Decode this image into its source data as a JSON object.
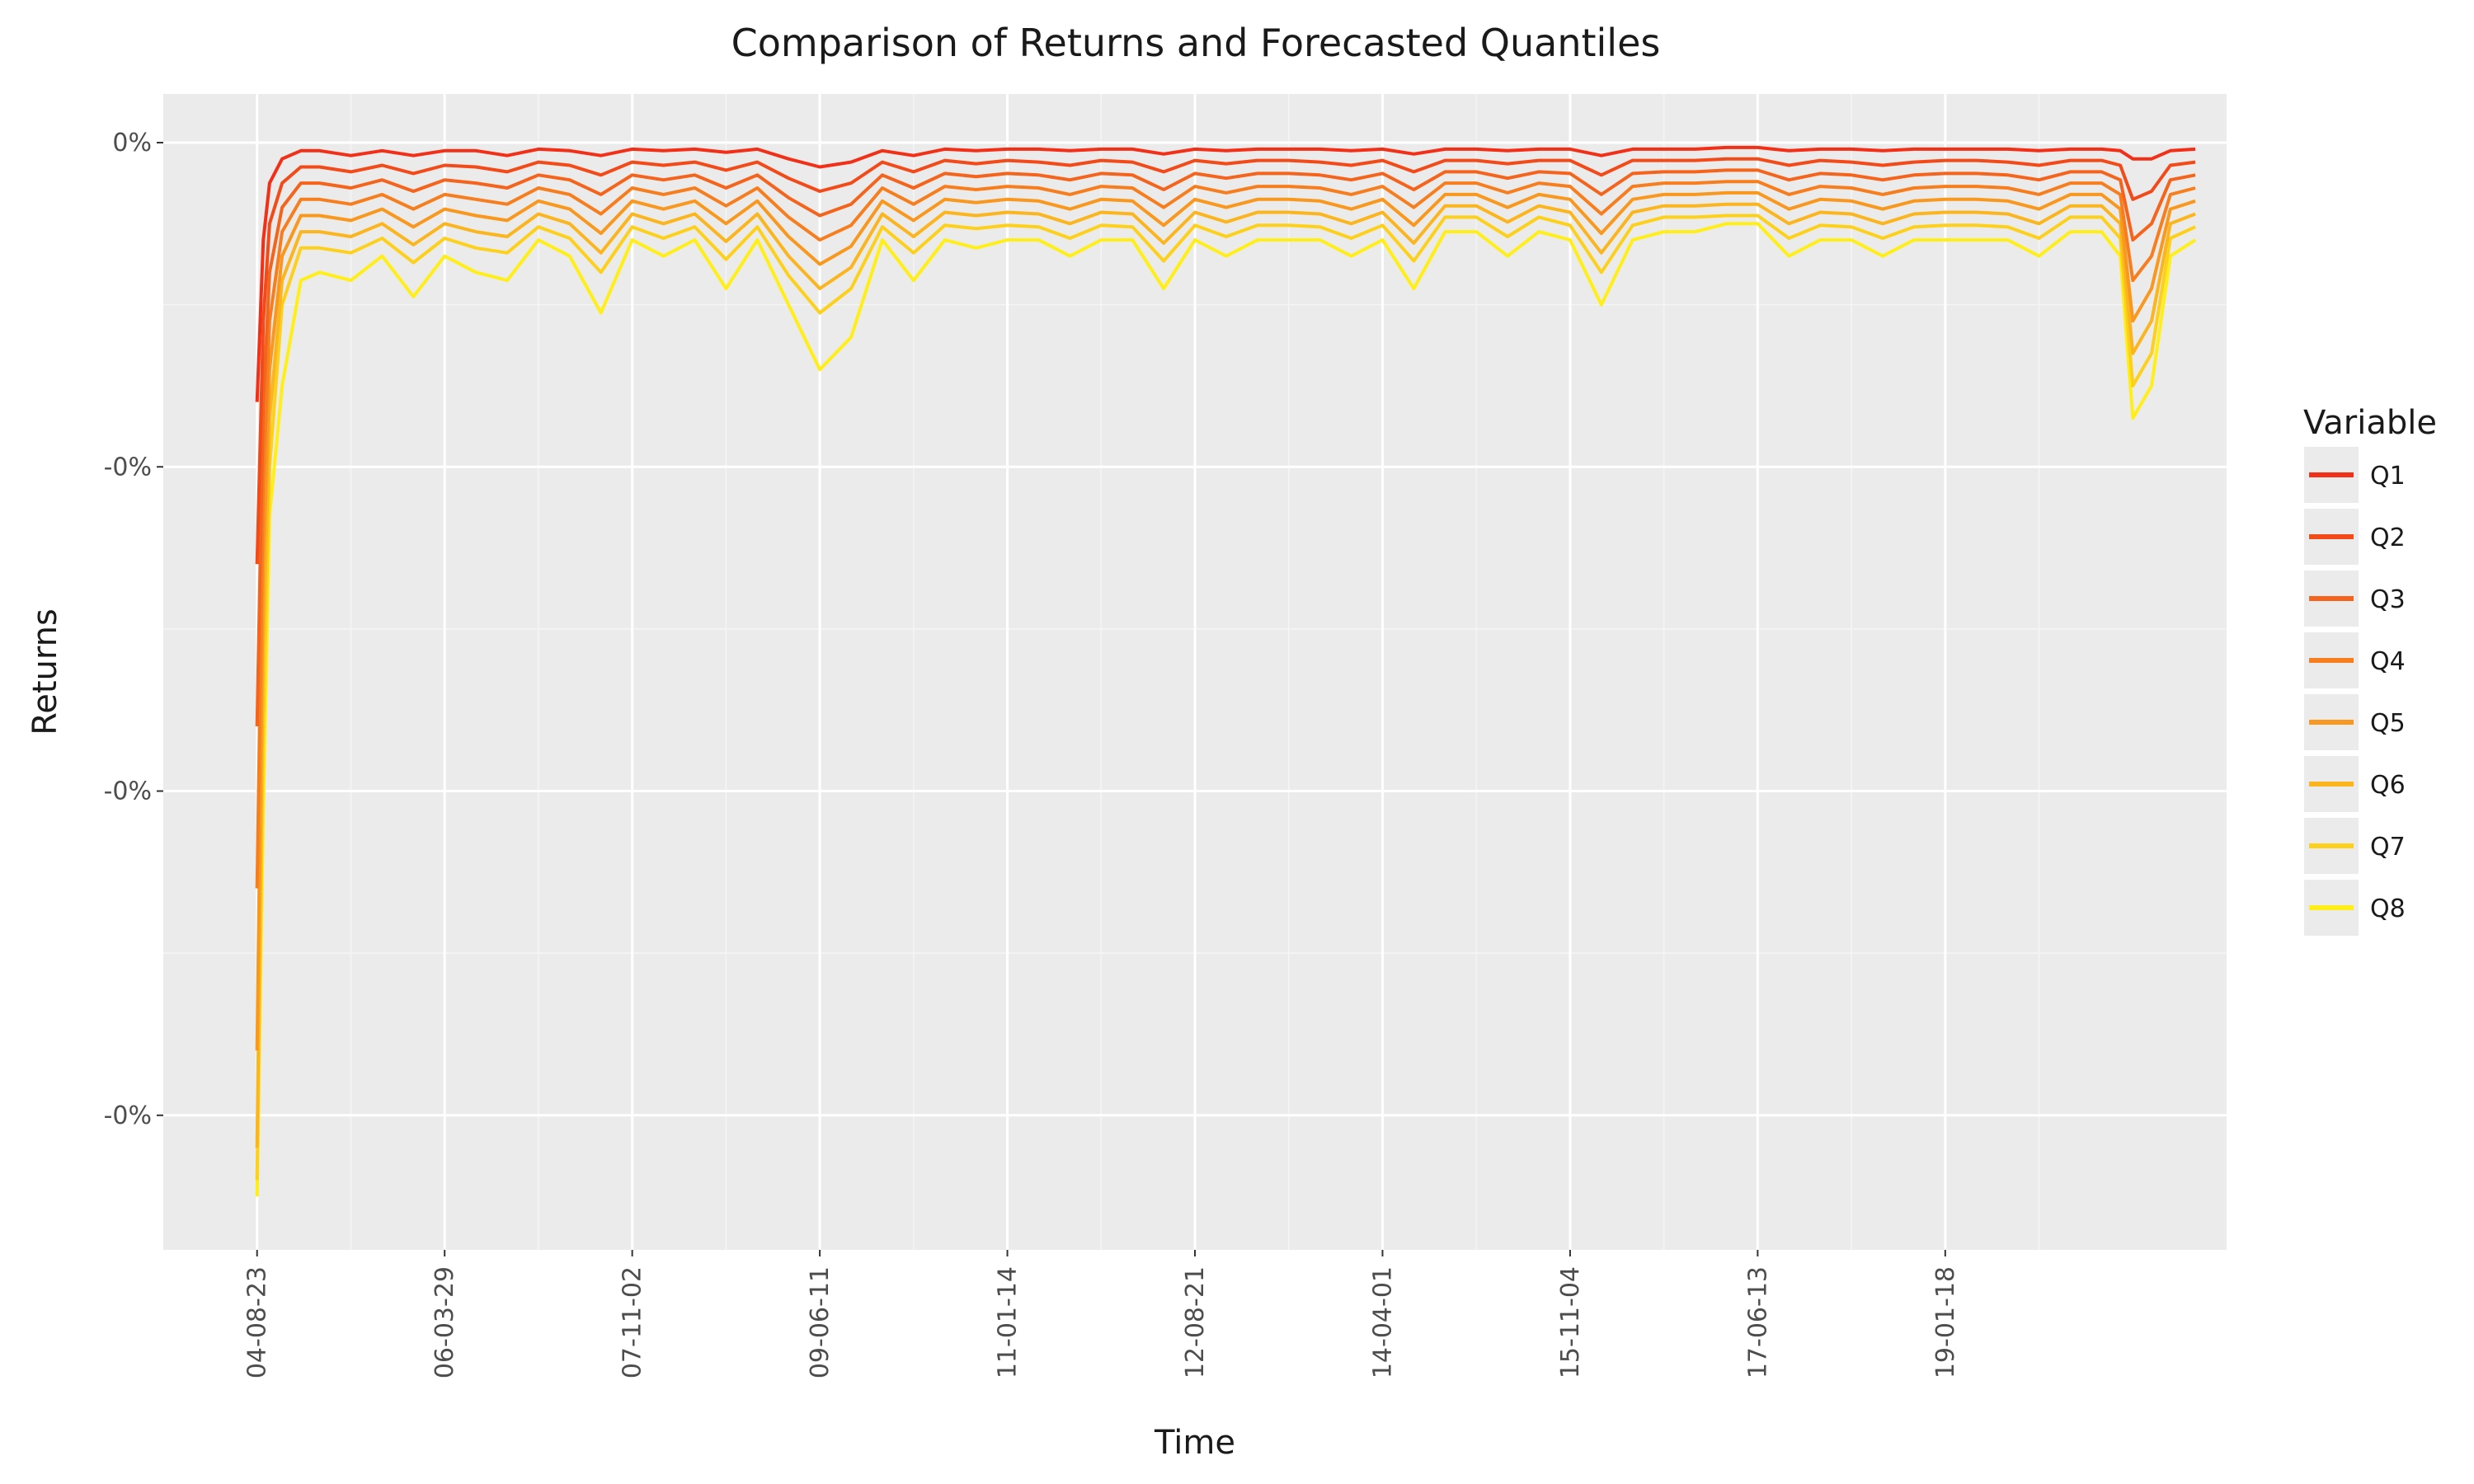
{
  "chart_data": {
    "type": "line",
    "title": "Comparison of Returns and Forecasted Quantiles",
    "xlabel": "Time",
    "ylabel": "Returns",
    "x_tick_labels": [
      "04-08-23",
      "06-03-29",
      "07-11-02",
      "09-06-11",
      "11-01-14",
      "12-08-21",
      "14-04-01",
      "15-11-04",
      "17-06-13",
      "19-01-18"
    ],
    "y_tick_labels": [
      "0%",
      "-0%",
      "-0%",
      "-0%"
    ],
    "y_ticks": [
      0,
      -0.002,
      -0.004,
      -0.006
    ],
    "ylim": [
      -0.00683,
      0.0003
    ],
    "xlim": [
      -1.5,
      31.5
    ],
    "grid": true,
    "legend": {
      "title": "Variable",
      "placement": "right",
      "entries": [
        "Q1",
        "Q2",
        "Q3",
        "Q4",
        "Q5",
        "Q6",
        "Q7",
        "Q8"
      ]
    },
    "x": [
      0,
      0.1,
      0.2,
      0.4,
      0.7,
      1,
      1.5,
      2,
      2.5,
      3,
      3.5,
      4,
      4.5,
      5,
      5.5,
      6,
      6.5,
      7,
      7.5,
      8,
      8.5,
      9,
      9.5,
      10,
      10.5,
      11,
      11.5,
      12,
      12.5,
      13,
      13.5,
      14,
      14.5,
      15,
      15.5,
      16,
      16.5,
      17,
      17.5,
      18,
      18.5,
      19,
      19.5,
      20,
      20.5,
      21,
      21.5,
      22,
      22.5,
      23,
      23.5,
      24,
      24.5,
      25,
      25.5,
      26,
      26.5,
      27,
      27.5,
      28,
      28.5,
      29,
      29.5,
      29.8,
      30,
      30.3,
      30.6,
      31
    ],
    "series": [
      {
        "name": "Q1",
        "color": "#f22f17",
        "values": [
          -0.0016,
          -0.0006,
          -0.00025,
          -0.0001,
          -5e-05,
          -5e-05,
          -8e-05,
          -5e-05,
          -8e-05,
          -5e-05,
          -5e-05,
          -8e-05,
          -4e-05,
          -5e-05,
          -8e-05,
          -4e-05,
          -5e-05,
          -4e-05,
          -6e-05,
          -4e-05,
          -0.0001,
          -0.00015,
          -0.00012,
          -5e-05,
          -8e-05,
          -4e-05,
          -5e-05,
          -4e-05,
          -4e-05,
          -5e-05,
          -4e-05,
          -4e-05,
          -7e-05,
          -4e-05,
          -5e-05,
          -4e-05,
          -4e-05,
          -4e-05,
          -5e-05,
          -4e-05,
          -7e-05,
          -4e-05,
          -4e-05,
          -5e-05,
          -4e-05,
          -4e-05,
          -8e-05,
          -4e-05,
          -4e-05,
          -4e-05,
          -3e-05,
          -3e-05,
          -5e-05,
          -4e-05,
          -4e-05,
          -5e-05,
          -4e-05,
          -4e-05,
          -4e-05,
          -4e-05,
          -5e-05,
          -4e-05,
          -4e-05,
          -5e-05,
          -0.0001,
          -0.0001,
          -5e-05,
          -4e-05
        ]
      },
      {
        "name": "Q2",
        "color": "#f24b19",
        "values": [
          -0.0026,
          -0.0011,
          -0.0005,
          -0.00025,
          -0.00015,
          -0.00015,
          -0.00018,
          -0.00014,
          -0.00019,
          -0.00014,
          -0.00015,
          -0.00018,
          -0.00012,
          -0.00014,
          -0.0002,
          -0.00012,
          -0.00014,
          -0.00012,
          -0.00017,
          -0.00012,
          -0.00022,
          -0.0003,
          -0.00025,
          -0.00012,
          -0.00018,
          -0.00011,
          -0.00013,
          -0.00011,
          -0.00012,
          -0.00014,
          -0.00011,
          -0.00012,
          -0.00018,
          -0.00011,
          -0.00013,
          -0.00011,
          -0.00011,
          -0.00012,
          -0.00014,
          -0.00011,
          -0.00018,
          -0.00011,
          -0.00011,
          -0.00013,
          -0.00011,
          -0.00011,
          -0.0002,
          -0.00011,
          -0.00011,
          -0.00011,
          -0.0001,
          -0.0001,
          -0.00014,
          -0.00011,
          -0.00012,
          -0.00014,
          -0.00012,
          -0.00011,
          -0.00011,
          -0.00012,
          -0.00014,
          -0.00011,
          -0.00011,
          -0.00014,
          -0.00035,
          -0.0003,
          -0.00014,
          -0.00012
        ]
      },
      {
        "name": "Q3",
        "color": "#f4641c",
        "values": [
          -0.0036,
          -0.0016,
          -0.0008,
          -0.0004,
          -0.00025,
          -0.00025,
          -0.00028,
          -0.00023,
          -0.0003,
          -0.00023,
          -0.00025,
          -0.00028,
          -0.0002,
          -0.00023,
          -0.00032,
          -0.0002,
          -0.00023,
          -0.0002,
          -0.00028,
          -0.0002,
          -0.00034,
          -0.00045,
          -0.00038,
          -0.0002,
          -0.00028,
          -0.00019,
          -0.00021,
          -0.00019,
          -0.0002,
          -0.00023,
          -0.00019,
          -0.0002,
          -0.00029,
          -0.00019,
          -0.00022,
          -0.00019,
          -0.00019,
          -0.0002,
          -0.00023,
          -0.00019,
          -0.00029,
          -0.00018,
          -0.00018,
          -0.00022,
          -0.00018,
          -0.00019,
          -0.00032,
          -0.00019,
          -0.00018,
          -0.00018,
          -0.00017,
          -0.00017,
          -0.00023,
          -0.00019,
          -0.0002,
          -0.00023,
          -0.0002,
          -0.00019,
          -0.00019,
          -0.0002,
          -0.00023,
          -0.00018,
          -0.00018,
          -0.00023,
          -0.0006,
          -0.0005,
          -0.00023,
          -0.0002
        ]
      },
      {
        "name": "Q4",
        "color": "#f67e1f",
        "values": [
          -0.0046,
          -0.0021,
          -0.0011,
          -0.00055,
          -0.00035,
          -0.00035,
          -0.00038,
          -0.00032,
          -0.00041,
          -0.00032,
          -0.00035,
          -0.00038,
          -0.00028,
          -0.00032,
          -0.00044,
          -0.00028,
          -0.00032,
          -0.00028,
          -0.00039,
          -0.00028,
          -0.00046,
          -0.0006,
          -0.00051,
          -0.00028,
          -0.00038,
          -0.00027,
          -0.00029,
          -0.00027,
          -0.00028,
          -0.00032,
          -0.00027,
          -0.00028,
          -0.0004,
          -0.00027,
          -0.00031,
          -0.00027,
          -0.00027,
          -0.00028,
          -0.00032,
          -0.00027,
          -0.0004,
          -0.00025,
          -0.00025,
          -0.00031,
          -0.00025,
          -0.00027,
          -0.00044,
          -0.00027,
          -0.00025,
          -0.00025,
          -0.00024,
          -0.00024,
          -0.00032,
          -0.00027,
          -0.00028,
          -0.00032,
          -0.00028,
          -0.00027,
          -0.00027,
          -0.00028,
          -0.00032,
          -0.00025,
          -0.00025,
          -0.00032,
          -0.00085,
          -0.0007,
          -0.00032,
          -0.00028
        ]
      },
      {
        "name": "Q5",
        "color": "#f8981f",
        "values": [
          -0.0056,
          -0.0026,
          -0.0014,
          -0.0007,
          -0.00045,
          -0.00045,
          -0.00048,
          -0.00041,
          -0.00052,
          -0.00041,
          -0.00045,
          -0.00048,
          -0.00036,
          -0.00041,
          -0.00056,
          -0.00036,
          -0.00041,
          -0.00036,
          -0.0005,
          -0.00036,
          -0.00058,
          -0.00075,
          -0.00064,
          -0.00036,
          -0.00048,
          -0.00035,
          -0.00037,
          -0.00035,
          -0.00036,
          -0.00041,
          -0.00035,
          -0.00036,
          -0.00051,
          -0.00035,
          -0.0004,
          -0.00035,
          -0.00035,
          -0.00036,
          -0.00041,
          -0.00035,
          -0.00051,
          -0.00032,
          -0.00032,
          -0.0004,
          -0.00032,
          -0.00035,
          -0.00056,
          -0.00035,
          -0.00032,
          -0.00032,
          -0.00031,
          -0.00031,
          -0.00041,
          -0.00035,
          -0.00036,
          -0.00041,
          -0.00036,
          -0.00035,
          -0.00035,
          -0.00036,
          -0.00041,
          -0.00032,
          -0.00032,
          -0.00041,
          -0.0011,
          -0.0009,
          -0.00041,
          -0.00036
        ]
      },
      {
        "name": "Q6",
        "color": "#fab51f",
        "values": [
          -0.0062,
          -0.0031,
          -0.0017,
          -0.00085,
          -0.00055,
          -0.00055,
          -0.00058,
          -0.0005,
          -0.00063,
          -0.0005,
          -0.00055,
          -0.00058,
          -0.00044,
          -0.0005,
          -0.00068,
          -0.00044,
          -0.0005,
          -0.00044,
          -0.00061,
          -0.00044,
          -0.0007,
          -0.0009,
          -0.00077,
          -0.00044,
          -0.00058,
          -0.00043,
          -0.00045,
          -0.00043,
          -0.00044,
          -0.0005,
          -0.00043,
          -0.00044,
          -0.00062,
          -0.00043,
          -0.00049,
          -0.00043,
          -0.00043,
          -0.00044,
          -0.0005,
          -0.00043,
          -0.00062,
          -0.00039,
          -0.00039,
          -0.00049,
          -0.00039,
          -0.00043,
          -0.00068,
          -0.00043,
          -0.00039,
          -0.00039,
          -0.00038,
          -0.00038,
          -0.0005,
          -0.00043,
          -0.00044,
          -0.0005,
          -0.00044,
          -0.00043,
          -0.00043,
          -0.00044,
          -0.0005,
          -0.00039,
          -0.00039,
          -0.0005,
          -0.0013,
          -0.0011,
          -0.0005,
          -0.00044
        ]
      },
      {
        "name": "Q7",
        "color": "#fcd01b",
        "values": [
          -0.0064,
          -0.0036,
          -0.002,
          -0.001,
          -0.00065,
          -0.00065,
          -0.00068,
          -0.00059,
          -0.00074,
          -0.00059,
          -0.00065,
          -0.00068,
          -0.00052,
          -0.00059,
          -0.0008,
          -0.00052,
          -0.00059,
          -0.00052,
          -0.00072,
          -0.00052,
          -0.00082,
          -0.00105,
          -0.0009,
          -0.00052,
          -0.00068,
          -0.00051,
          -0.00053,
          -0.00051,
          -0.00052,
          -0.00059,
          -0.00051,
          -0.00052,
          -0.00073,
          -0.00051,
          -0.00058,
          -0.00051,
          -0.00051,
          -0.00052,
          -0.00059,
          -0.00051,
          -0.00073,
          -0.00046,
          -0.00046,
          -0.00058,
          -0.00046,
          -0.00051,
          -0.0008,
          -0.00051,
          -0.00046,
          -0.00046,
          -0.00045,
          -0.00045,
          -0.00059,
          -0.00051,
          -0.00052,
          -0.00059,
          -0.00052,
          -0.00051,
          -0.00051,
          -0.00052,
          -0.00059,
          -0.00046,
          -0.00046,
          -0.00059,
          -0.0015,
          -0.0013,
          -0.00059,
          -0.00052
        ]
      },
      {
        "name": "Q8",
        "color": "#ffee17",
        "values": [
          -0.0065,
          -0.0041,
          -0.0023,
          -0.0015,
          -0.00085,
          -0.0008,
          -0.00085,
          -0.0007,
          -0.00095,
          -0.0007,
          -0.0008,
          -0.00085,
          -0.0006,
          -0.0007,
          -0.00105,
          -0.0006,
          -0.0007,
          -0.0006,
          -0.0009,
          -0.0006,
          -0.001,
          -0.0014,
          -0.0012,
          -0.0006,
          -0.00085,
          -0.0006,
          -0.00065,
          -0.0006,
          -0.0006,
          -0.0007,
          -0.0006,
          -0.0006,
          -0.0009,
          -0.0006,
          -0.0007,
          -0.0006,
          -0.0006,
          -0.0006,
          -0.0007,
          -0.0006,
          -0.0009,
          -0.00055,
          -0.00055,
          -0.0007,
          -0.00055,
          -0.0006,
          -0.001,
          -0.0006,
          -0.00055,
          -0.00055,
          -0.0005,
          -0.0005,
          -0.0007,
          -0.0006,
          -0.0006,
          -0.0007,
          -0.0006,
          -0.0006,
          -0.0006,
          -0.0006,
          -0.0007,
          -0.00055,
          -0.00055,
          -0.0007,
          -0.0017,
          -0.0015,
          -0.0007,
          -0.0006
        ]
      }
    ]
  }
}
